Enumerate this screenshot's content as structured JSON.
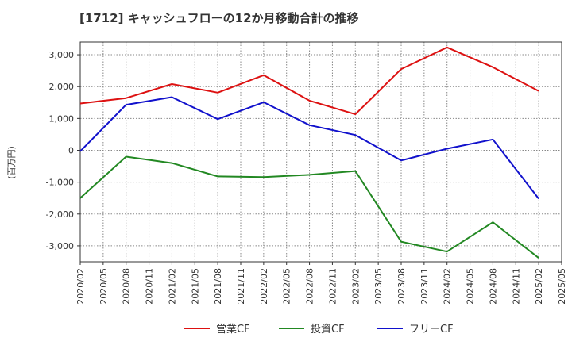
{
  "chart_data": {
    "type": "line",
    "title": "[1712]  キャッシュフローの12か月移動合計の推移",
    "ylabel": "(百万円)",
    "xlabel": "",
    "categories": [
      "2020/02",
      "2020/05",
      "2020/08",
      "2020/11",
      "2021/02",
      "2021/05",
      "2021/08",
      "2021/11",
      "2022/02",
      "2022/05",
      "2022/08",
      "2022/11",
      "2023/02",
      "2023/05",
      "2023/08",
      "2023/11",
      "2024/02",
      "2024/05",
      "2024/08",
      "2024/11",
      "2025/02",
      "2025/05"
    ],
    "ylim": [
      -3500,
      3400
    ],
    "yticks": [
      3000,
      2000,
      1000,
      0,
      -1000,
      -2000,
      -3000
    ],
    "ytick_labels": [
      "3,000",
      "2,000",
      "1,000",
      "0",
      "-1,000",
      "-2,000",
      "-3,000"
    ],
    "grid": true,
    "legend_position": "bottom",
    "series": [
      {
        "name": "営業CF",
        "color": "#dd1111",
        "points": [
          [
            "2020/02",
            1470
          ],
          [
            "2020/08",
            1640
          ],
          [
            "2021/02",
            2080
          ],
          [
            "2021/08",
            1810
          ],
          [
            "2022/02",
            2360
          ],
          [
            "2022/08",
            1560
          ],
          [
            "2023/02",
            1130
          ],
          [
            "2023/08",
            2550
          ],
          [
            "2024/02",
            3230
          ],
          [
            "2024/08",
            2610
          ],
          [
            "2025/02",
            1860
          ]
        ]
      },
      {
        "name": "投資CF",
        "color": "#228822",
        "points": [
          [
            "2020/02",
            -1500
          ],
          [
            "2020/08",
            -200
          ],
          [
            "2021/02",
            -400
          ],
          [
            "2021/08",
            -820
          ],
          [
            "2022/02",
            -840
          ],
          [
            "2022/08",
            -770
          ],
          [
            "2023/02",
            -650
          ],
          [
            "2023/08",
            -2870
          ],
          [
            "2024/02",
            -3180
          ],
          [
            "2024/08",
            -2260
          ],
          [
            "2025/02",
            -3380
          ]
        ]
      },
      {
        "name": "フリーCF",
        "color": "#1111cc",
        "points": [
          [
            "2020/02",
            -30
          ],
          [
            "2020/08",
            1430
          ],
          [
            "2021/02",
            1670
          ],
          [
            "2021/08",
            980
          ],
          [
            "2022/02",
            1510
          ],
          [
            "2022/08",
            790
          ],
          [
            "2023/02",
            480
          ],
          [
            "2023/08",
            -320
          ],
          [
            "2024/02",
            50
          ],
          [
            "2024/08",
            340
          ],
          [
            "2025/02",
            -1520
          ]
        ]
      }
    ]
  }
}
